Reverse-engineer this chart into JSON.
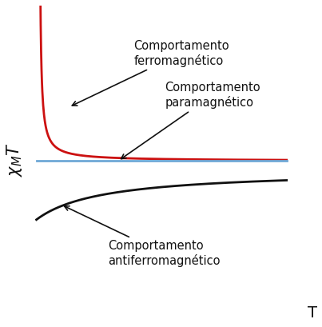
{
  "background_color": "#ffffff",
  "xlabel": "T",
  "ylabel_main": "χ",
  "ylabel_sub": "M",
  "ylabel_post": "T",
  "line_paramagnetic_color": "#6fa8d6",
  "line_ferromagnetic_color": "#cc1111",
  "line_antiferromagnetic_color": "#111111",
  "axis_color": "#111111",
  "text_ferromagnetic_line1": "Comportamento",
  "text_ferromagnetic_line2": "ferromagnético",
  "text_paramagnetic_line1": "Comportamento",
  "text_paramagnetic_line2": "paramagnético",
  "text_antiferromagnetic_line1": "Comportamento",
  "text_antiferromagnetic_line2": "antiferromagnético",
  "font_size_labels": 10.5,
  "font_size_axis_label": 14,
  "C_param": 1.0,
  "Tc_ferro": 0.15,
  "Tc_antiferro": 2.5,
  "xmin": 0.0,
  "xmax": 10.0,
  "ymin": -1.6,
  "ymax": 3.6,
  "param_level": 1.0,
  "antiferro_asymptote": 0.85
}
